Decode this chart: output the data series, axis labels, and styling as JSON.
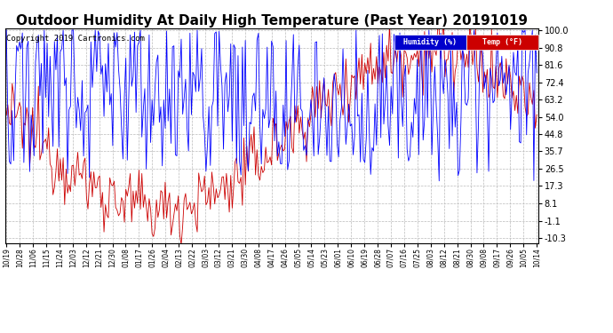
{
  "title": "Outdoor Humidity At Daily High Temperature (Past Year) 20191019",
  "copyright": "Copyright 2019 Cartronics.com",
  "legend_humidity": "Humidity (%)",
  "legend_temp": "Temp (°F)",
  "humidity_color": "#0000ff",
  "temp_color": "#cc0000",
  "humidity_legend_bg": "#0000cc",
  "temp_legend_bg": "#cc0000",
  "yticks": [
    100.0,
    90.8,
    81.6,
    72.4,
    63.2,
    54.0,
    44.8,
    35.7,
    26.5,
    17.3,
    8.1,
    -1.1,
    -10.3
  ],
  "ylim_min": -13.0,
  "ylim_max": 101.0,
  "background_color": "#ffffff",
  "grid_color": "#bbbbbb",
  "title_fontsize": 11,
  "copyright_fontsize": 6.5,
  "x_dates": [
    "10/19",
    "10/28",
    "11/06",
    "11/15",
    "11/24",
    "12/03",
    "12/12",
    "12/21",
    "12/30",
    "01/08",
    "01/17",
    "01/26",
    "02/04",
    "02/13",
    "02/22",
    "03/03",
    "03/12",
    "03/21",
    "03/30",
    "04/08",
    "04/17",
    "04/26",
    "05/05",
    "05/14",
    "05/23",
    "06/01",
    "06/10",
    "06/19",
    "06/28",
    "07/07",
    "07/16",
    "07/25",
    "08/03",
    "08/12",
    "08/21",
    "08/30",
    "09/08",
    "09/17",
    "09/26",
    "10/05",
    "10/14"
  ],
  "n_days": 365
}
